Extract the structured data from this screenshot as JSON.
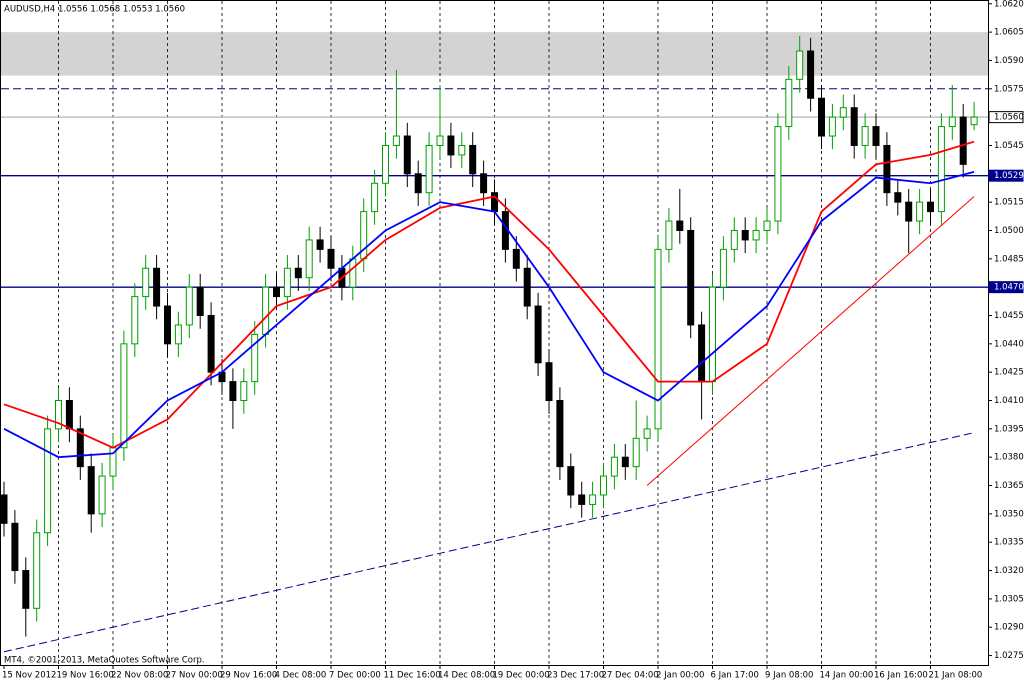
{
  "chart_data": {
    "type": "candlestick",
    "title": "AUDUSD,H4 1.0556 1.0568 1.0553 1.0560",
    "footer": "MT4, ©2001-2013, MetaQuotes Software Corp.",
    "categories": [
      "15 Nov 2012",
      null,
      null,
      null,
      null,
      "19 Nov 16:00",
      null,
      null,
      null,
      null,
      "22 Nov 08:00",
      null,
      null,
      null,
      null,
      "27 Nov 00:00",
      null,
      null,
      null,
      null,
      "29 Nov 16:00",
      null,
      null,
      null,
      null,
      "4 Dec 08:00",
      null,
      null,
      null,
      null,
      "7 Dec 00:00",
      null,
      null,
      null,
      null,
      "11 Dec 16:00",
      null,
      null,
      null,
      null,
      "14 Dec 08:00",
      null,
      null,
      null,
      null,
      "19 Dec 00:00",
      null,
      null,
      null,
      null,
      "23 Dec 17:00",
      null,
      null,
      null,
      null,
      "27 Dec 04:00",
      null,
      null,
      null,
      null,
      "2 Jan 00:00",
      null,
      null,
      null,
      null,
      "6 Jan 17:00",
      null,
      null,
      null,
      null,
      "9 Jan 08:00",
      null,
      null,
      null,
      null,
      "14 Jan 00:00",
      null,
      null,
      null,
      null,
      "16 Jan 16:00",
      null,
      null,
      null,
      null,
      "21 Jan 08:00",
      null,
      null,
      null,
      null
    ],
    "open": [
      1.036,
      1.0345,
      1.032,
      1.03,
      1.034,
      1.0395,
      1.041,
      1.0395,
      1.0375,
      1.035,
      1.037,
      1.0385,
      1.044,
      1.0465,
      1.048,
      1.046,
      1.044,
      1.045,
      1.047,
      1.0455,
      1.0425,
      1.042,
      1.041,
      1.042,
      1.0445,
      1.047,
      1.0465,
      1.048,
      1.0475,
      1.0495,
      1.049,
      1.048,
      1.047,
      1.0485,
      1.051,
      1.0525,
      1.0545,
      1.055,
      1.053,
      1.052,
      1.0545,
      1.055,
      1.054,
      1.0545,
      1.053,
      1.052,
      1.051,
      1.049,
      1.048,
      1.046,
      1.043,
      1.041,
      1.0375,
      1.036,
      1.0355,
      1.036,
      1.037,
      1.038,
      1.0375,
      1.039,
      1.0395,
      1.049,
      1.0505,
      1.05,
      1.045,
      1.042,
      1.047,
      1.049,
      1.05,
      1.0495,
      1.05,
      1.0505,
      1.0555,
      1.058,
      1.0595,
      1.057,
      1.055,
      1.056,
      1.0565,
      1.0545,
      1.0555,
      1.0545,
      1.052,
      1.0515,
      1.0505,
      1.0515,
      1.051,
      1.0555,
      1.056,
      1.0556
    ],
    "high": [
      1.0367,
      1.0352,
      1.0327,
      1.0347,
      1.0402,
      1.0417,
      1.0417,
      1.0402,
      1.0382,
      1.0377,
      1.0392,
      1.0447,
      1.0472,
      1.0487,
      1.0487,
      1.0467,
      1.0457,
      1.0477,
      1.0477,
      1.0462,
      1.0432,
      1.0427,
      1.0427,
      1.0452,
      1.0477,
      1.0477,
      1.0487,
      1.0487,
      1.0502,
      1.0502,
      1.0497,
      1.0487,
      1.0492,
      1.0517,
      1.0532,
      1.0552,
      1.0585,
      1.0557,
      1.0537,
      1.0552,
      1.0577,
      1.0557,
      1.0552,
      1.0552,
      1.0537,
      1.0527,
      1.0517,
      1.0497,
      1.0487,
      1.0467,
      1.0437,
      1.0417,
      1.0382,
      1.0367,
      1.0367,
      1.0377,
      1.0387,
      1.0387,
      1.041,
      1.0402,
      1.0497,
      1.0512,
      1.0522,
      1.0507,
      1.0457,
      1.0477,
      1.0497,
      1.0507,
      1.0507,
      1.0507,
      1.0512,
      1.0562,
      1.0587,
      1.0603,
      1.0602,
      1.0577,
      1.0567,
      1.0572,
      1.0572,
      1.0562,
      1.0562,
      1.0552,
      1.0527,
      1.0522,
      1.0522,
      1.0522,
      1.0562,
      1.0577,
      1.0567,
      1.0568
    ],
    "low": [
      1.0338,
      1.0313,
      1.0285,
      1.0293,
      1.0333,
      1.0388,
      1.0388,
      1.0368,
      1.034,
      1.0343,
      1.0363,
      1.0378,
      1.0433,
      1.0458,
      1.0453,
      1.0433,
      1.0433,
      1.0443,
      1.0448,
      1.0418,
      1.0413,
      1.0395,
      1.0403,
      1.0413,
      1.0438,
      1.0458,
      1.0458,
      1.0468,
      1.0468,
      1.0483,
      1.0473,
      1.0463,
      1.0463,
      1.0478,
      1.0503,
      1.0518,
      1.0538,
      1.0523,
      1.0513,
      1.0513,
      1.0538,
      1.0533,
      1.0533,
      1.0523,
      1.0513,
      1.0503,
      1.0483,
      1.0473,
      1.0453,
      1.0423,
      1.0403,
      1.0368,
      1.0353,
      1.0348,
      1.0348,
      1.0353,
      1.0363,
      1.0368,
      1.0368,
      1.0383,
      1.0388,
      1.0483,
      1.0493,
      1.0443,
      1.04,
      1.0413,
      1.0463,
      1.0483,
      1.0488,
      1.0488,
      1.0493,
      1.0498,
      1.0548,
      1.0573,
      1.0563,
      1.0543,
      1.0543,
      1.0553,
      1.0538,
      1.0538,
      1.0538,
      1.0513,
      1.0508,
      1.0488,
      1.0498,
      1.0503,
      1.0503,
      1.0548,
      1.0528,
      1.0553
    ],
    "close": [
      1.0345,
      1.032,
      1.03,
      1.034,
      1.0395,
      1.041,
      1.0395,
      1.0375,
      1.035,
      1.037,
      1.0385,
      1.044,
      1.0465,
      1.048,
      1.046,
      1.044,
      1.045,
      1.047,
      1.0455,
      1.0425,
      1.042,
      1.041,
      1.042,
      1.0445,
      1.047,
      1.0465,
      1.048,
      1.0475,
      1.0495,
      1.049,
      1.048,
      1.047,
      1.0485,
      1.051,
      1.0525,
      1.0545,
      1.055,
      1.053,
      1.052,
      1.0545,
      1.055,
      1.054,
      1.0545,
      1.053,
      1.052,
      1.051,
      1.049,
      1.048,
      1.046,
      1.043,
      1.041,
      1.0375,
      1.036,
      1.0355,
      1.036,
      1.037,
      1.038,
      1.0375,
      1.039,
      1.0395,
      1.049,
      1.0505,
      1.05,
      1.045,
      1.042,
      1.047,
      1.049,
      1.05,
      1.0495,
      1.05,
      1.0505,
      1.0555,
      1.058,
      1.0595,
      1.057,
      1.055,
      1.056,
      1.0565,
      1.0545,
      1.0555,
      1.0545,
      1.052,
      1.0515,
      1.0505,
      1.0515,
      1.051,
      1.0555,
      1.056,
      1.0535,
      1.056
    ],
    "bull_color": "#00a000",
    "bear_color": "#000000",
    "ylim": [
      1.027,
      1.0622
    ],
    "yticks": [
      {
        "value": 1.062,
        "label": "1.0620"
      },
      {
        "value": 1.0605,
        "label": "1.0605"
      },
      {
        "value": 1.059,
        "label": "1.0590"
      },
      {
        "value": 1.0575,
        "label": "1.0575"
      },
      {
        "value": 1.056,
        "label": "1.0560"
      },
      {
        "value": 1.0545,
        "label": "1.0545"
      },
      {
        "value": 1.053,
        "label": "1.0530"
      },
      {
        "value": 1.0515,
        "label": "1.0515"
      },
      {
        "value": 1.05,
        "label": "1.0500"
      },
      {
        "value": 1.0485,
        "label": "1.0485"
      },
      {
        "value": 1.047,
        "label": "1.0470"
      },
      {
        "value": 1.0455,
        "label": "1.0455"
      },
      {
        "value": 1.044,
        "label": "1.0440"
      },
      {
        "value": 1.0425,
        "label": "1.0425"
      },
      {
        "value": 1.041,
        "label": "1.0410"
      },
      {
        "value": 1.0395,
        "label": "1.0395"
      },
      {
        "value": 1.038,
        "label": "1.0380"
      },
      {
        "value": 1.0365,
        "label": "1.0365"
      },
      {
        "value": 1.035,
        "label": "1.0350"
      },
      {
        "value": 1.0335,
        "label": "1.0335"
      },
      {
        "value": 1.032,
        "label": "1.0320"
      },
      {
        "value": 1.0305,
        "label": "1.0305"
      },
      {
        "value": 1.029,
        "label": "1.0290"
      },
      {
        "value": 1.0275,
        "label": "1.0275"
      }
    ],
    "grid": true,
    "zone": {
      "from": 1.0582,
      "to": 1.0605,
      "color": "#d3d3d3"
    },
    "levels": [
      {
        "value": 1.0575,
        "color": "#00008b",
        "dash": true
      },
      {
        "value": 1.056,
        "label": "1.0560",
        "color": "#c0c0c0",
        "dash": false
      },
      {
        "value": 1.0529,
        "label": "1.0529",
        "color": "#00008b",
        "dash": false
      },
      {
        "value": 1.047,
        "label": "1.0470",
        "color": "#00008b",
        "dash": false
      }
    ],
    "lines": [
      {
        "color": "#ff0000",
        "width": 1.8,
        "x": [
          0,
          5,
          10,
          15,
          20,
          25,
          30,
          35,
          40,
          45,
          50,
          55,
          60,
          65,
          70,
          75,
          80,
          85,
          89
        ],
        "values": [
          1.0408,
          1.0398,
          1.0385,
          1.04,
          1.043,
          1.046,
          1.047,
          1.0495,
          1.0512,
          1.0518,
          1.049,
          1.0455,
          1.042,
          1.042,
          1.044,
          1.051,
          1.0535,
          1.054,
          1.0547
        ]
      },
      {
        "color": "#0000ff",
        "width": 1.8,
        "x": [
          0,
          5,
          10,
          15,
          20,
          25,
          30,
          35,
          40,
          45,
          50,
          55,
          60,
          65,
          70,
          75,
          80,
          85,
          89
        ],
        "values": [
          1.0395,
          1.038,
          1.0382,
          1.041,
          1.0425,
          1.045,
          1.0475,
          1.05,
          1.0515,
          1.051,
          1.047,
          1.0425,
          1.041,
          1.0435,
          1.046,
          1.0505,
          1.0528,
          1.0525,
          1.0531
        ]
      },
      {
        "color": "#00008b",
        "width": 1,
        "dash": true,
        "x": [
          0,
          89
        ],
        "values": [
          1.0277,
          1.0393
        ]
      },
      {
        "color": "#ff0000",
        "width": 1,
        "x": [
          59,
          89
        ],
        "values": [
          1.0365,
          1.0518
        ]
      }
    ]
  }
}
